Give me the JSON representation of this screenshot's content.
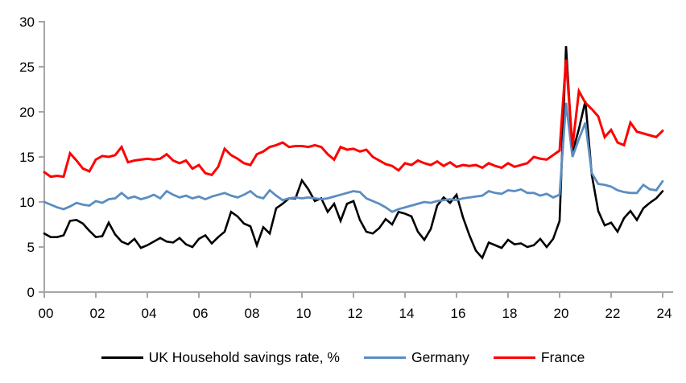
{
  "chart_data": {
    "type": "line",
    "title": "",
    "frequency": "quarterly",
    "start_period": "2000 Q1",
    "end_period": "2024 Q1",
    "legend_position": "bottom",
    "grid": false,
    "x_axis": {
      "tick_labels": [
        "00",
        "02",
        "04",
        "06",
        "08",
        "10",
        "12",
        "14",
        "16",
        "18",
        "20",
        "22",
        "24"
      ],
      "range": [
        0,
        24
      ]
    },
    "y_axis": {
      "tick_labels": [
        "0",
        "5",
        "10",
        "15",
        "20",
        "25",
        "30"
      ],
      "ticks": [
        0,
        5,
        10,
        15,
        20,
        25,
        30
      ],
      "range": [
        0,
        30
      ]
    },
    "series": [
      {
        "name": "UK Household savings rate, %",
        "color": "#000000",
        "values": [
          6.5,
          6.1,
          6.1,
          6.3,
          7.9,
          8.0,
          7.6,
          6.8,
          6.1,
          6.2,
          7.7,
          6.4,
          5.6,
          5.3,
          5.9,
          4.9,
          5.2,
          5.6,
          6.0,
          5.6,
          5.5,
          6.0,
          5.3,
          5.0,
          5.9,
          6.3,
          5.4,
          6.1,
          6.7,
          8.9,
          8.4,
          7.6,
          7.3,
          5.2,
          7.2,
          6.5,
          9.3,
          9.8,
          10.4,
          10.4,
          12.4,
          11.4,
          10.1,
          10.4,
          8.9,
          9.8,
          7.9,
          9.8,
          10.1,
          8.0,
          6.7,
          6.5,
          7.1,
          8.1,
          7.5,
          8.9,
          8.7,
          8.4,
          6.7,
          5.8,
          7.0,
          9.6,
          10.5,
          9.9,
          10.8,
          8.3,
          6.3,
          4.6,
          3.8,
          5.5,
          5.2,
          4.9,
          5.8,
          5.3,
          5.4,
          5.0,
          5.2,
          5.9,
          5.0,
          5.9,
          7.9,
          27.3,
          15.5,
          18.1,
          21.2,
          13.0,
          9.0,
          7.4,
          7.7,
          6.7,
          8.2,
          9.0,
          8.0,
          9.3,
          9.9,
          10.4,
          11.2
        ]
      },
      {
        "name": "Germany",
        "color": "#5B8DC1",
        "values": [
          10.0,
          9.7,
          9.4,
          9.2,
          9.5,
          9.9,
          9.7,
          9.6,
          10.1,
          9.9,
          10.3,
          10.4,
          11.0,
          10.4,
          10.6,
          10.3,
          10.5,
          10.8,
          10.4,
          11.2,
          10.8,
          10.5,
          10.7,
          10.4,
          10.6,
          10.3,
          10.6,
          10.8,
          11.0,
          10.7,
          10.5,
          10.8,
          11.2,
          10.6,
          10.4,
          11.3,
          10.7,
          10.2,
          10.4,
          10.5,
          10.4,
          10.5,
          10.4,
          10.3,
          10.4,
          10.6,
          10.8,
          11.0,
          11.2,
          11.1,
          10.4,
          10.1,
          9.8,
          9.4,
          8.9,
          9.2,
          9.4,
          9.6,
          9.8,
          10.0,
          9.9,
          10.1,
          10.2,
          10.3,
          10.2,
          10.4,
          10.5,
          10.6,
          10.7,
          11.2,
          11.0,
          10.9,
          11.3,
          11.2,
          11.4,
          11.0,
          11.0,
          10.7,
          10.9,
          10.5,
          10.8,
          21.0,
          15.0,
          17.0,
          18.8,
          13.2,
          12.0,
          11.9,
          11.7,
          11.3,
          11.1,
          11.0,
          11.0,
          11.9,
          11.4,
          11.3,
          12.3
        ]
      },
      {
        "name": "France",
        "color": "#FF0000",
        "values": [
          13.3,
          12.8,
          12.9,
          12.8,
          15.4,
          14.6,
          13.7,
          13.4,
          14.7,
          15.1,
          15.0,
          15.2,
          16.1,
          14.4,
          14.6,
          14.7,
          14.8,
          14.7,
          14.8,
          15.3,
          14.6,
          14.3,
          14.6,
          13.7,
          14.1,
          13.2,
          13.0,
          13.9,
          15.9,
          15.2,
          14.8,
          14.3,
          14.1,
          15.3,
          15.6,
          16.1,
          16.3,
          16.6,
          16.1,
          16.2,
          16.2,
          16.1,
          16.3,
          16.1,
          15.3,
          14.7,
          16.1,
          15.8,
          15.9,
          15.6,
          15.8,
          15.0,
          14.6,
          14.2,
          14.0,
          13.5,
          14.3,
          14.1,
          14.6,
          14.3,
          14.1,
          14.5,
          14.0,
          14.4,
          13.9,
          14.1,
          14.0,
          14.1,
          13.8,
          14.3,
          14.0,
          13.8,
          14.3,
          13.9,
          14.1,
          14.3,
          15.0,
          14.8,
          14.7,
          15.2,
          15.7,
          25.8,
          16.1,
          22.3,
          21.0,
          20.3,
          19.5,
          17.2,
          18.0,
          16.6,
          16.3,
          18.8,
          17.8,
          17.6,
          17.4,
          17.2,
          17.9
        ]
      }
    ]
  },
  "colors": {
    "axis": "#A6A6A6",
    "text": "#000000",
    "background": "#FFFFFF"
  },
  "legend": {
    "items": [
      {
        "label": "UK Household savings rate, %"
      },
      {
        "label": "Germany"
      },
      {
        "label": "France"
      }
    ]
  }
}
